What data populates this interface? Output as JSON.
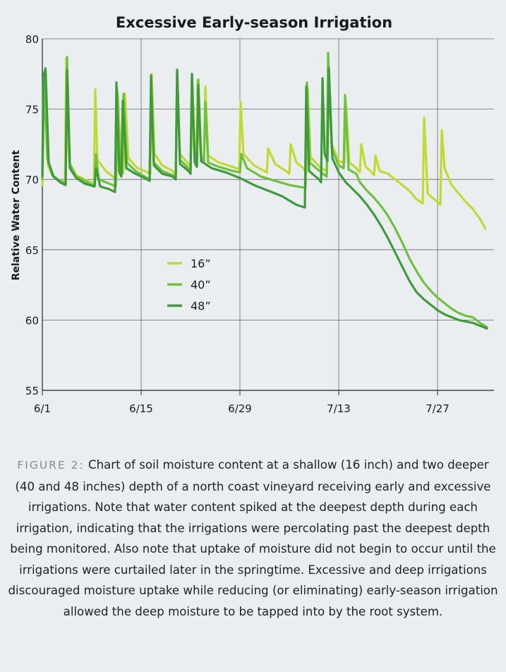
{
  "chart_data": {
    "type": "line",
    "title": "Excessive Early-season Irrigation",
    "ylabel": "Relative Water Content",
    "xlabel": "",
    "ylim": [
      55,
      80
    ],
    "yticks": [
      55,
      60,
      65,
      70,
      75,
      80
    ],
    "xlim": [
      0,
      64
    ],
    "xticks": [
      {
        "label": "6/1",
        "day": 0
      },
      {
        "label": "6/15",
        "day": 14
      },
      {
        "label": "6/29",
        "day": 28
      },
      {
        "label": "7/13",
        "day": 42
      },
      {
        "label": "7/27",
        "day": 56
      }
    ],
    "grid": true,
    "legend": "center-left",
    "series": [
      {
        "name": "16”",
        "color": "#c2d833",
        "points": [
          [
            0,
            69.6
          ],
          [
            0.3,
            77.3
          ],
          [
            0.8,
            71
          ],
          [
            1.5,
            70.2
          ],
          [
            2.5,
            69.9
          ],
          [
            3.2,
            69.8
          ],
          [
            3.4,
            78.6
          ],
          [
            3.8,
            71.2
          ],
          [
            4.8,
            70.3
          ],
          [
            6,
            70
          ],
          [
            7.3,
            69.7
          ],
          [
            7.5,
            76.4
          ],
          [
            7.8,
            71.4
          ],
          [
            9,
            70.6
          ],
          [
            10,
            70.2
          ],
          [
            10.5,
            69.9
          ],
          [
            10.7,
            76
          ],
          [
            11.2,
            70.8
          ],
          [
            11.5,
            70.5
          ],
          [
            11.7,
            76.1
          ],
          [
            12.2,
            71.5
          ],
          [
            13.5,
            70.8
          ],
          [
            14.5,
            70.6
          ],
          [
            15.3,
            70.4
          ],
          [
            15.5,
            77.5
          ],
          [
            15.9,
            71.8
          ],
          [
            17,
            71
          ],
          [
            18.5,
            70.6
          ],
          [
            18.9,
            70.3
          ],
          [
            19.1,
            77.6
          ],
          [
            19.5,
            71.8
          ],
          [
            20.7,
            71.1
          ],
          [
            21,
            70.9
          ],
          [
            21.2,
            77.3
          ],
          [
            21.5,
            71.8
          ],
          [
            21.8,
            71.5
          ],
          [
            22,
            77
          ],
          [
            22.4,
            71.9
          ],
          [
            22.9,
            71.4
          ],
          [
            23.1,
            76.6
          ],
          [
            23.5,
            71.7
          ],
          [
            25,
            71.2
          ],
          [
            27,
            70.9
          ],
          [
            27.9,
            70.7
          ],
          [
            28.1,
            75.5
          ],
          [
            28.5,
            71.8
          ],
          [
            30,
            71
          ],
          [
            31.8,
            70.5
          ],
          [
            32,
            72.2
          ],
          [
            33,
            71.1
          ],
          [
            34.5,
            70.6
          ],
          [
            35,
            70.4
          ],
          [
            35.2,
            72.5
          ],
          [
            36,
            71.2
          ],
          [
            37,
            70.8
          ],
          [
            37.4,
            70.4
          ],
          [
            37.6,
            76.5
          ],
          [
            38,
            71.6
          ],
          [
            39.5,
            70.8
          ],
          [
            40.3,
            70.6
          ],
          [
            40.5,
            78.8
          ],
          [
            41,
            72.5
          ],
          [
            42,
            71.3
          ],
          [
            42.8,
            71.2
          ],
          [
            43,
            75.5
          ],
          [
            43.5,
            71.2
          ],
          [
            44.5,
            70.8
          ],
          [
            45,
            70.5
          ],
          [
            45.2,
            72.5
          ],
          [
            45.8,
            70.9
          ],
          [
            46.5,
            70.6
          ],
          [
            47,
            70.3
          ],
          [
            47.2,
            71.7
          ],
          [
            47.8,
            70.6
          ],
          [
            49,
            70.4
          ],
          [
            50,
            70
          ],
          [
            51,
            69.6
          ],
          [
            52,
            69.2
          ],
          [
            53,
            68.6
          ],
          [
            53.9,
            68.3
          ],
          [
            54.1,
            74.4
          ],
          [
            54.6,
            69
          ],
          [
            55.5,
            68.6
          ],
          [
            56.4,
            68.2
          ],
          [
            56.6,
            73.5
          ],
          [
            57,
            70.8
          ],
          [
            58,
            69.6
          ],
          [
            59,
            69
          ],
          [
            60,
            68.4
          ],
          [
            61,
            67.9
          ],
          [
            62,
            67.2
          ],
          [
            62.8,
            66.5
          ]
        ]
      },
      {
        "name": "40”",
        "color": "#6ec13d",
        "points": [
          [
            0,
            70
          ],
          [
            0.25,
            77.6
          ],
          [
            0.7,
            71.5
          ],
          [
            1.4,
            70.3
          ],
          [
            2.5,
            69.9
          ],
          [
            3.3,
            69.7
          ],
          [
            3.5,
            78.7
          ],
          [
            3.9,
            71.1
          ],
          [
            4.8,
            70.2
          ],
          [
            6,
            69.9
          ],
          [
            7.4,
            69.5
          ],
          [
            7.6,
            71.8
          ],
          [
            8,
            70
          ],
          [
            9.5,
            69.7
          ],
          [
            10.4,
            69.5
          ],
          [
            10.6,
            76.4
          ],
          [
            11,
            70.8
          ],
          [
            11.3,
            70.4
          ],
          [
            11.5,
            76.1
          ],
          [
            12,
            71.2
          ],
          [
            13.2,
            70.6
          ],
          [
            14.5,
            70.2
          ],
          [
            15.2,
            70
          ],
          [
            15.4,
            76
          ],
          [
            15.8,
            71.2
          ],
          [
            17,
            70.6
          ],
          [
            18.5,
            70.3
          ],
          [
            18.9,
            70.1
          ],
          [
            19.1,
            77.7
          ],
          [
            19.5,
            71.4
          ],
          [
            20.7,
            70.8
          ],
          [
            21,
            70.6
          ],
          [
            21.2,
            77.4
          ],
          [
            21.6,
            71.4
          ],
          [
            21.9,
            71.1
          ],
          [
            22.1,
            77.1
          ],
          [
            22.5,
            71.6
          ],
          [
            22.9,
            71.2
          ],
          [
            23.1,
            75.5
          ],
          [
            23.5,
            71.2
          ],
          [
            25,
            70.9
          ],
          [
            27,
            70.6
          ],
          [
            28,
            70.5
          ],
          [
            28.2,
            71.8
          ],
          [
            29,
            70.8
          ],
          [
            31,
            70.2
          ],
          [
            33,
            69.9
          ],
          [
            35,
            69.6
          ],
          [
            37.3,
            69.4
          ],
          [
            37.5,
            76.9
          ],
          [
            37.9,
            71.2
          ],
          [
            39.5,
            70.5
          ],
          [
            40.3,
            70.2
          ],
          [
            40.5,
            79
          ],
          [
            41,
            72.2
          ],
          [
            42,
            71
          ],
          [
            42.7,
            70.8
          ],
          [
            42.9,
            76
          ],
          [
            43.4,
            70.7
          ],
          [
            44.5,
            70.4
          ],
          [
            45,
            69.8
          ],
          [
            46,
            69.2
          ],
          [
            47,
            68.7
          ],
          [
            48,
            68.1
          ],
          [
            49,
            67.4
          ],
          [
            50,
            66.5
          ],
          [
            51,
            65.5
          ],
          [
            52,
            64.4
          ],
          [
            53,
            63.5
          ],
          [
            54,
            62.7
          ],
          [
            55,
            62.1
          ],
          [
            56,
            61.6
          ],
          [
            57,
            61.2
          ],
          [
            58,
            60.8
          ],
          [
            59,
            60.5
          ],
          [
            60,
            60.3
          ],
          [
            61,
            60.2
          ],
          [
            62,
            59.8
          ],
          [
            63,
            59.5
          ]
        ]
      },
      {
        "name": "48”",
        "color": "#3e9a3c",
        "points": [
          [
            0,
            70.2
          ],
          [
            0.15,
            77.3
          ],
          [
            0.45,
            77.9
          ],
          [
            0.9,
            71.2
          ],
          [
            1.6,
            70.2
          ],
          [
            2.5,
            69.8
          ],
          [
            3.3,
            69.6
          ],
          [
            3.5,
            77.8
          ],
          [
            3.9,
            70.8
          ],
          [
            4.8,
            70.1
          ],
          [
            6,
            69.7
          ],
          [
            7.4,
            69.5
          ],
          [
            7.6,
            70.8
          ],
          [
            8.2,
            69.5
          ],
          [
            9.5,
            69.3
          ],
          [
            10.3,
            69.1
          ],
          [
            10.5,
            76.9
          ],
          [
            10.9,
            70.5
          ],
          [
            11.2,
            70.2
          ],
          [
            11.4,
            75.6
          ],
          [
            11.9,
            70.8
          ],
          [
            13.2,
            70.4
          ],
          [
            14.5,
            70.1
          ],
          [
            15.2,
            69.9
          ],
          [
            15.4,
            77.4
          ],
          [
            15.8,
            71
          ],
          [
            17,
            70.4
          ],
          [
            18.5,
            70.2
          ],
          [
            18.9,
            70
          ],
          [
            19.1,
            77.8
          ],
          [
            19.5,
            71.1
          ],
          [
            20.7,
            70.6
          ],
          [
            21,
            70.4
          ],
          [
            21.2,
            77.5
          ],
          [
            21.6,
            71.2
          ],
          [
            21.9,
            70.9
          ],
          [
            22.1,
            76.7
          ],
          [
            22.5,
            71.3
          ],
          [
            24,
            70.8
          ],
          [
            26,
            70.5
          ],
          [
            28,
            70.1
          ],
          [
            30,
            69.6
          ],
          [
            32,
            69.2
          ],
          [
            34,
            68.8
          ],
          [
            36,
            68.2
          ],
          [
            37.2,
            68
          ],
          [
            37.4,
            76.6
          ],
          [
            37.8,
            70.6
          ],
          [
            39.2,
            70
          ],
          [
            39.5,
            69.8
          ],
          [
            39.7,
            77.2
          ],
          [
            40,
            71.8
          ],
          [
            40.4,
            71.3
          ],
          [
            40.6,
            77.9
          ],
          [
            41.1,
            71.5
          ],
          [
            42,
            70.5
          ],
          [
            43,
            69.8
          ],
          [
            44,
            69.3
          ],
          [
            45,
            68.8
          ],
          [
            46,
            68.2
          ],
          [
            47,
            67.5
          ],
          [
            48,
            66.7
          ],
          [
            49,
            65.8
          ],
          [
            50,
            64.8
          ],
          [
            51,
            63.8
          ],
          [
            52,
            62.8
          ],
          [
            53,
            62
          ],
          [
            54,
            61.5
          ],
          [
            55,
            61.1
          ],
          [
            56,
            60.7
          ],
          [
            57,
            60.4
          ],
          [
            58,
            60.2
          ],
          [
            59,
            60
          ],
          [
            60,
            59.9
          ],
          [
            61,
            59.8
          ],
          [
            62,
            59.6
          ],
          [
            63,
            59.4
          ]
        ]
      }
    ]
  },
  "caption": {
    "label": "FIGURE 2:",
    "text": "Chart of soil moisture content at a shallow (16 inch) and two deeper (40 and 48 inches) depth of a north coast vineyard receiving early and excessive irrigations. Note that water content spiked at the deepest depth during each irrigation, indicating that the irrigations were percolating past the deepest depth being monitored. Also note that uptake of moisture did not begin to occur until the irrigations were curtailed later in the springtime. Excessive and deep irrigations discouraged moisture uptake while reducing (or eliminating) early-season irrigation allowed the deep moisture to be tapped into by the root system."
  }
}
